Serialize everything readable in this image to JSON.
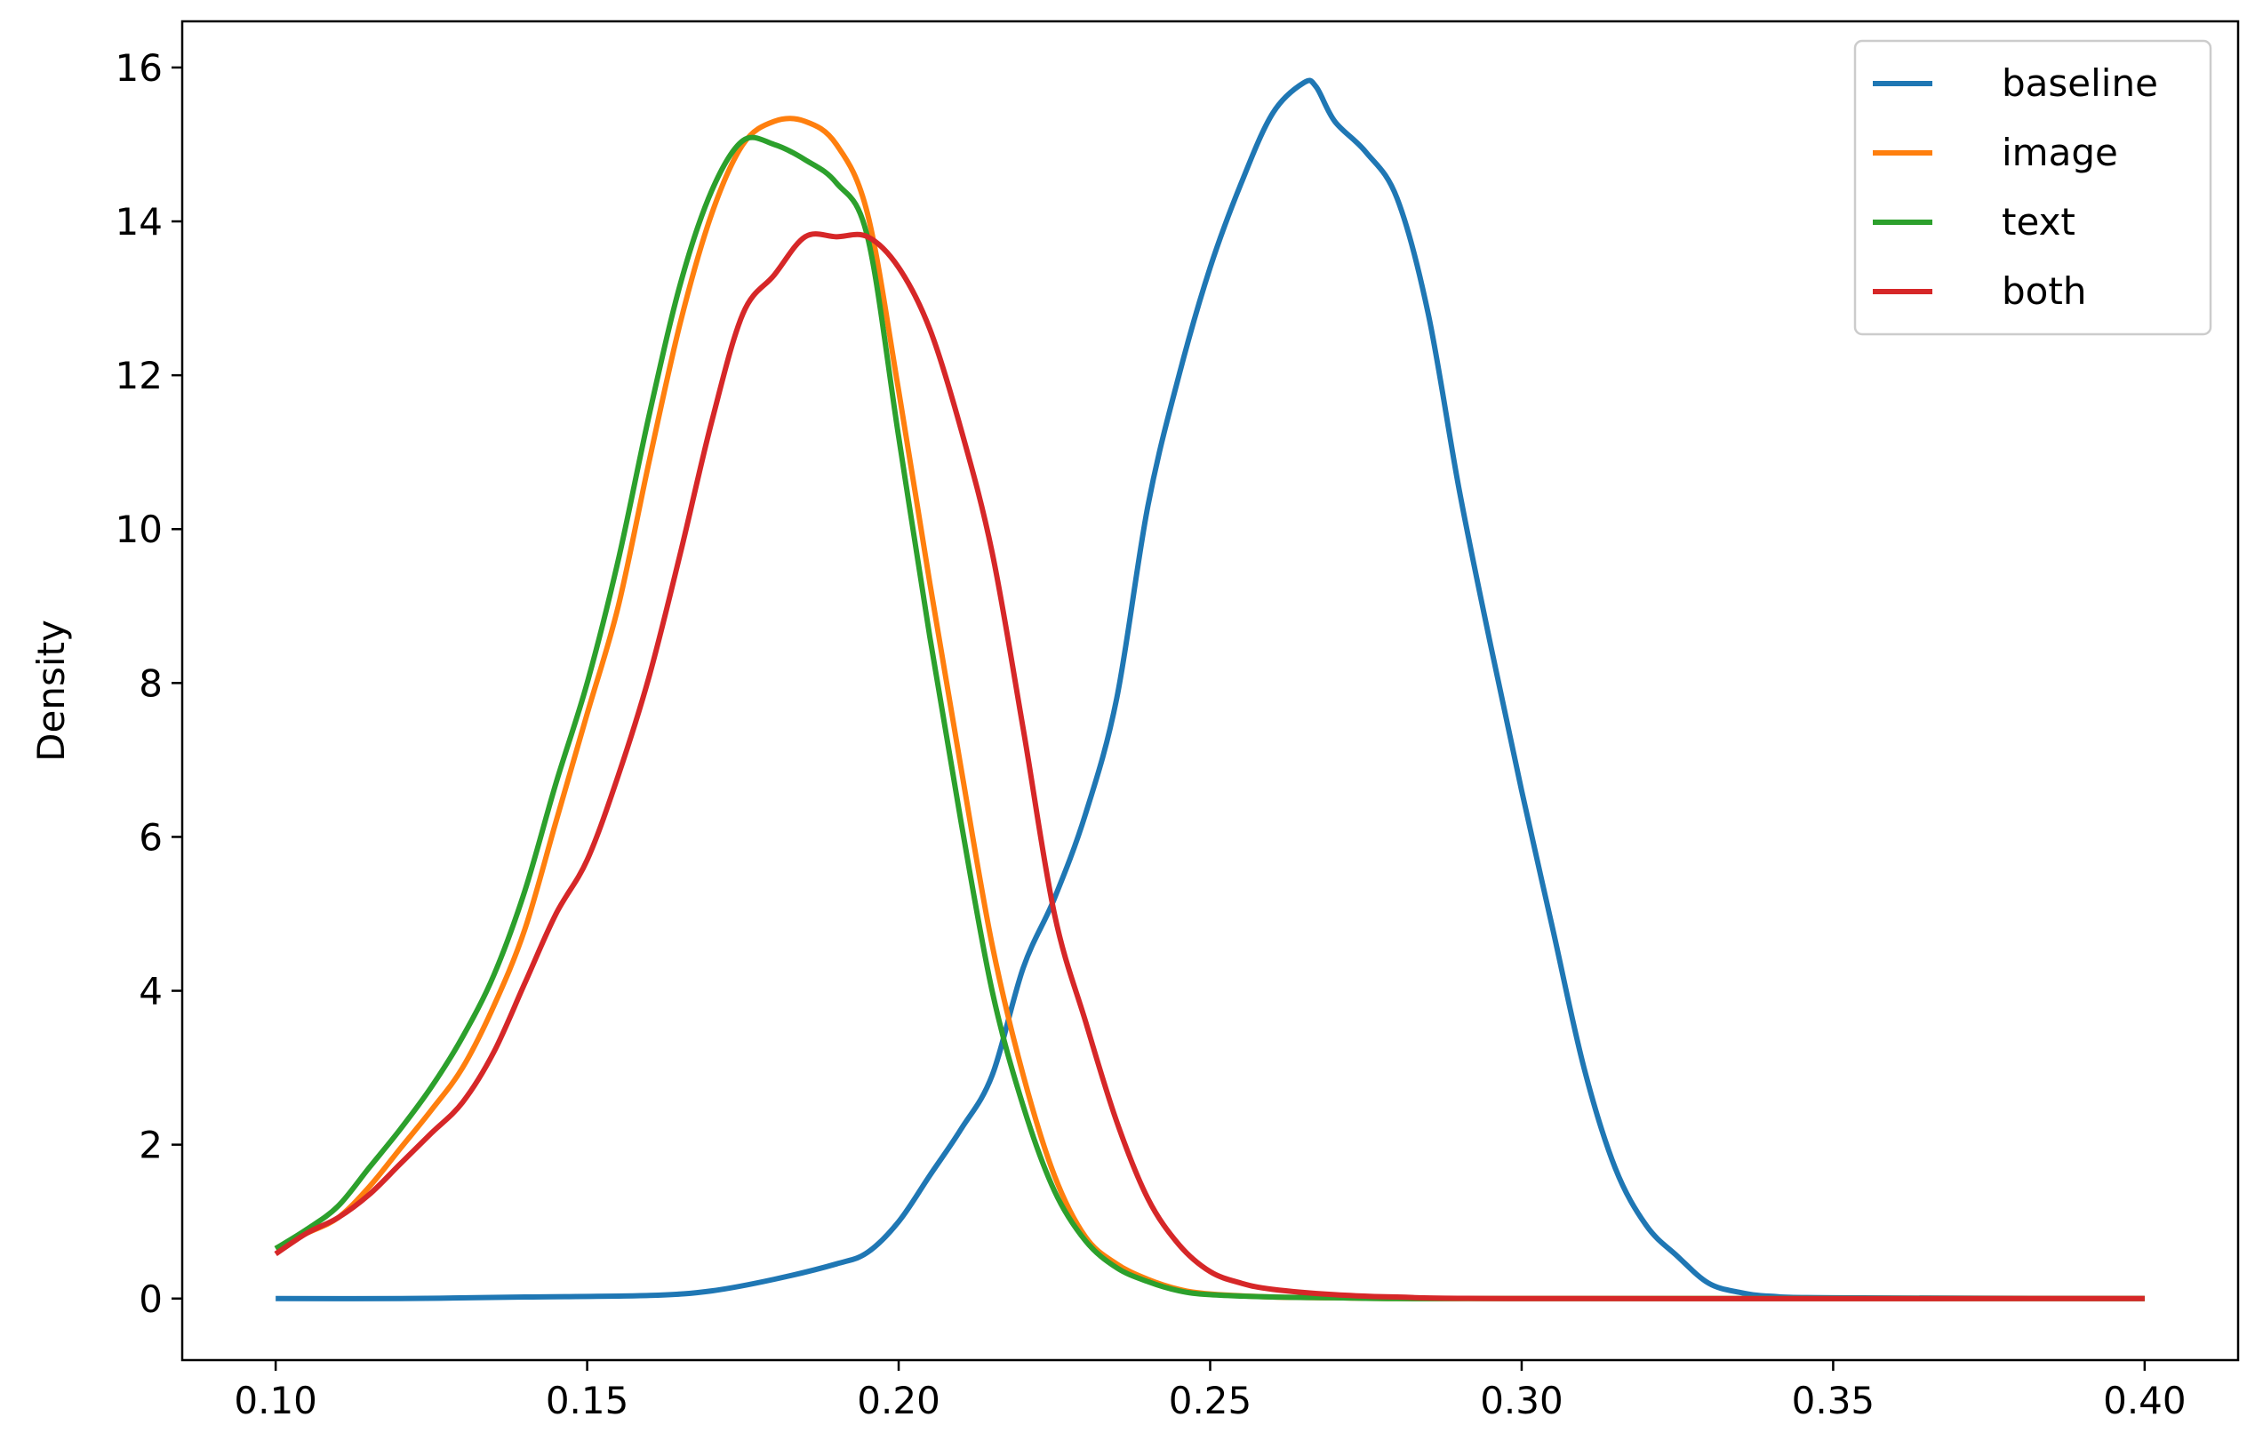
{
  "chart_data": {
    "type": "line",
    "title": "",
    "xlabel": "",
    "ylabel": "Density",
    "xlim": [
      0.085,
      0.415
    ],
    "ylim": [
      -0.8,
      16.6
    ],
    "xticks": [
      0.1,
      0.15,
      0.2,
      0.25,
      0.3,
      0.35,
      0.4
    ],
    "xtick_labels": [
      "0.10",
      "0.15",
      "0.20",
      "0.25",
      "0.30",
      "0.35",
      "0.40"
    ],
    "yticks": [
      0,
      2,
      4,
      6,
      8,
      10,
      12,
      14,
      16
    ],
    "ytick_labels": [
      "0",
      "2",
      "4",
      "6",
      "8",
      "10",
      "12",
      "14",
      "16"
    ],
    "grid": false,
    "legend_position": "top-right",
    "series": [
      {
        "name": "baseline",
        "color": "#1f77b4",
        "x": [
          0.1,
          0.12,
          0.14,
          0.16,
          0.17,
          0.18,
          0.19,
          0.195,
          0.2,
          0.205,
          0.21,
          0.215,
          0.22,
          0.225,
          0.23,
          0.235,
          0.24,
          0.245,
          0.25,
          0.255,
          0.26,
          0.265,
          0.267,
          0.27,
          0.275,
          0.28,
          0.285,
          0.29,
          0.295,
          0.3,
          0.305,
          0.31,
          0.315,
          0.32,
          0.325,
          0.33,
          0.335,
          0.34,
          0.35,
          0.4
        ],
        "y": [
          0,
          0,
          0.02,
          0.04,
          0.1,
          0.25,
          0.45,
          0.6,
          1.0,
          1.6,
          2.2,
          2.9,
          4.3,
          5.2,
          6.3,
          7.8,
          10.3,
          12.0,
          13.4,
          14.5,
          15.4,
          15.8,
          15.75,
          15.3,
          14.9,
          14.3,
          12.8,
          10.5,
          8.5,
          6.6,
          4.8,
          3.0,
          1.7,
          0.95,
          0.55,
          0.2,
          0.08,
          0.03,
          0.01,
          0.0
        ]
      },
      {
        "name": "image",
        "color": "#ff7f0e",
        "x": [
          0.1,
          0.105,
          0.11,
          0.115,
          0.12,
          0.125,
          0.13,
          0.135,
          0.14,
          0.145,
          0.15,
          0.155,
          0.16,
          0.165,
          0.17,
          0.175,
          0.18,
          0.185,
          0.19,
          0.195,
          0.2,
          0.205,
          0.21,
          0.215,
          0.22,
          0.225,
          0.23,
          0.235,
          0.24,
          0.245,
          0.25,
          0.26,
          0.27,
          0.28,
          0.3,
          0.4
        ],
        "y": [
          0.65,
          0.85,
          1.05,
          1.45,
          1.95,
          2.45,
          3.0,
          3.8,
          4.8,
          6.2,
          7.6,
          9.0,
          10.9,
          12.7,
          14.1,
          15.0,
          15.3,
          15.3,
          15.0,
          14.1,
          11.8,
          9.3,
          6.9,
          4.6,
          2.9,
          1.6,
          0.8,
          0.45,
          0.25,
          0.12,
          0.06,
          0.02,
          0.01,
          0.0,
          0.0,
          0.0
        ]
      },
      {
        "name": "text",
        "color": "#2ca02c",
        "x": [
          0.1,
          0.105,
          0.11,
          0.115,
          0.12,
          0.125,
          0.13,
          0.135,
          0.14,
          0.145,
          0.15,
          0.155,
          0.16,
          0.165,
          0.17,
          0.175,
          0.18,
          0.185,
          0.19,
          0.195,
          0.2,
          0.205,
          0.21,
          0.215,
          0.22,
          0.225,
          0.23,
          0.235,
          0.24,
          0.245,
          0.25,
          0.26,
          0.27,
          0.28,
          0.3,
          0.4
        ],
        "y": [
          0.65,
          0.9,
          1.2,
          1.7,
          2.2,
          2.75,
          3.4,
          4.2,
          5.3,
          6.7,
          8.0,
          9.6,
          11.5,
          13.2,
          14.4,
          15.05,
          15.0,
          14.8,
          14.5,
          13.8,
          11.2,
          8.6,
          6.2,
          4.0,
          2.5,
          1.4,
          0.75,
          0.4,
          0.22,
          0.1,
          0.05,
          0.02,
          0.01,
          0.0,
          0.0,
          0.0
        ]
      },
      {
        "name": "both",
        "color": "#d62728",
        "x": [
          0.1,
          0.105,
          0.11,
          0.115,
          0.12,
          0.125,
          0.13,
          0.135,
          0.14,
          0.145,
          0.15,
          0.155,
          0.16,
          0.165,
          0.17,
          0.175,
          0.18,
          0.185,
          0.19,
          0.195,
          0.2,
          0.205,
          0.21,
          0.215,
          0.22,
          0.225,
          0.23,
          0.235,
          0.24,
          0.245,
          0.25,
          0.255,
          0.26,
          0.27,
          0.28,
          0.3,
          0.4
        ],
        "y": [
          0.58,
          0.85,
          1.05,
          1.35,
          1.75,
          2.15,
          2.55,
          3.2,
          4.1,
          5.0,
          5.7,
          6.8,
          8.1,
          9.7,
          11.4,
          12.8,
          13.3,
          13.8,
          13.8,
          13.8,
          13.4,
          12.6,
          11.3,
          9.7,
          7.4,
          5.0,
          3.6,
          2.3,
          1.3,
          0.7,
          0.35,
          0.2,
          0.12,
          0.05,
          0.02,
          0.0,
          0.0
        ]
      }
    ]
  }
}
